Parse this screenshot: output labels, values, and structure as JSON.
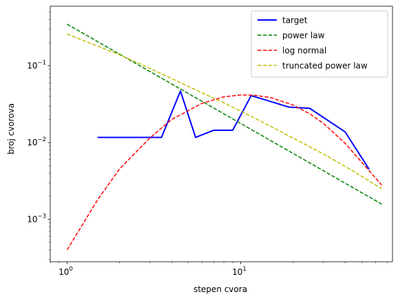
{
  "chart_data": {
    "type": "line",
    "xlabel": "stepen cvora",
    "ylabel": "broj cvorova",
    "xscale": "log",
    "yscale": "log",
    "xlim": [
      0.8,
      75
    ],
    "ylim": [
      0.00028,
      0.6
    ],
    "grid": false,
    "legend_position": "top-right",
    "x_ticks": [
      {
        "value": 1,
        "base": "10",
        "exp": "0"
      },
      {
        "value": 10,
        "base": "10",
        "exp": "1"
      }
    ],
    "y_ticks": [
      {
        "value": 0.001,
        "base": "10",
        "exp": "−3"
      },
      {
        "value": 0.01,
        "base": "10",
        "exp": "−2"
      },
      {
        "value": 0.1,
        "base": "10",
        "exp": "−1"
      }
    ],
    "series": [
      {
        "name": "target",
        "color": "#0000ff",
        "dash": "solid",
        "width": 2,
        "x": [
          1.5,
          2.5,
          3.5,
          4.5,
          5.5,
          7,
          9,
          11.5,
          19,
          25,
          40,
          55
        ],
        "y": [
          0.0117,
          0.0117,
          0.0117,
          0.047,
          0.0117,
          0.0145,
          0.0145,
          0.041,
          0.029,
          0.028,
          0.0138,
          0.0045
        ]
      },
      {
        "name": "power law",
        "color": "#008000",
        "dash": "dashed",
        "width": 1.5,
        "x": [
          1,
          65
        ],
        "y": [
          0.35,
          0.00158
        ]
      },
      {
        "name": "log normal",
        "color": "#ff0000",
        "dash": "dashed",
        "width": 1.5,
        "x": [
          1,
          1.5,
          2,
          3,
          4,
          6,
          8,
          10,
          12,
          15,
          20,
          25,
          30,
          40,
          50,
          65
        ],
        "y": [
          0.0004,
          0.0018,
          0.0045,
          0.0115,
          0.02,
          0.0325,
          0.0395,
          0.0418,
          0.0415,
          0.0385,
          0.031,
          0.0238,
          0.0178,
          0.0098,
          0.0055,
          0.0028
        ]
      },
      {
        "name": "truncated power law",
        "color": "#bfbf00",
        "dash": "dashed",
        "width": 1.5,
        "x": [
          1,
          2,
          3,
          5,
          8,
          12,
          20,
          30,
          45,
          65
        ],
        "y": [
          0.26,
          0.14,
          0.093,
          0.054,
          0.033,
          0.021,
          0.0115,
          0.0071,
          0.0042,
          0.0025
        ]
      }
    ]
  }
}
